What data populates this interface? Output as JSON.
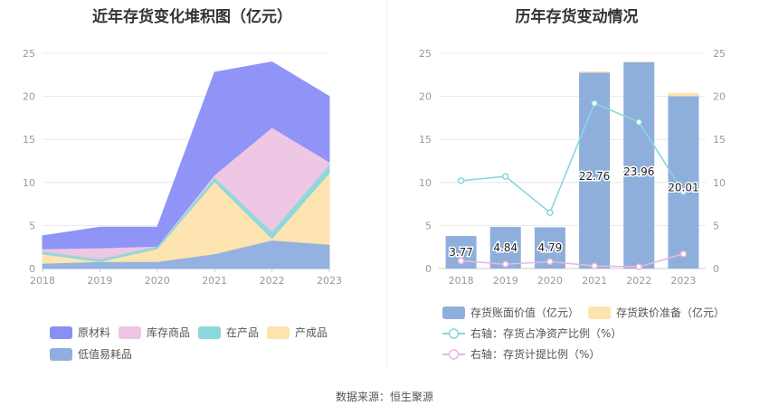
{
  "source": "数据来源：恒生聚源",
  "charts": [
    {
      "title": "近年存货变化堆积图（亿元）",
      "chart_data": {
        "type": "area",
        "stacked": true,
        "x": [
          "2018",
          "2019",
          "2020",
          "2021",
          "2022",
          "2023"
        ],
        "ylim": [
          0,
          25
        ],
        "yticks": [
          "0",
          "5",
          "10",
          "15",
          "20",
          "25"
        ],
        "series": [
          {
            "name": "低值易耗品",
            "color": "#8faee0",
            "values": [
              0.6,
              0.8,
              0.8,
              1.7,
              3.3,
              2.8
            ]
          },
          {
            "name": "产成品",
            "color": "#fde3ad",
            "values": [
              1.1,
              0.0,
              1.5,
              8.4,
              0.2,
              8.3
            ]
          },
          {
            "name": "在产品",
            "color": "#8ad8dc",
            "values": [
              0.3,
              0.3,
              0.3,
              0.5,
              0.8,
              1.0
            ]
          },
          {
            "name": "库存商品",
            "color": "#eec5e4",
            "values": [
              0.3,
              1.3,
              0.0,
              0.3,
              12.1,
              0.3
            ]
          },
          {
            "name": "原材料",
            "color": "#8a8ff6",
            "values": [
              1.5,
              2.4,
              2.2,
              11.9,
              7.6,
              7.6
            ]
          }
        ],
        "legend": [
          "原材料",
          "库存商品",
          "在产品",
          "产成品",
          "低值易耗品"
        ],
        "legend_position": "bottom"
      }
    },
    {
      "title": "历年存货变动情况",
      "chart_data": {
        "type": "bar",
        "x": [
          "2018",
          "2019",
          "2020",
          "2021",
          "2022",
          "2023"
        ],
        "ylim_left": [
          0,
          25
        ],
        "ylim_right": [
          0,
          25
        ],
        "yticks": [
          "0",
          "5",
          "10",
          "15",
          "20",
          "25"
        ],
        "bars": {
          "name": "存货账面价值（亿元）",
          "color": "#8eaedc",
          "values": [
            3.77,
            4.84,
            4.79,
            22.76,
            23.96,
            20.01
          ],
          "labels": [
            "3.77",
            "4.84",
            "4.79",
            "22.76",
            "23.96",
            "20.01"
          ]
        },
        "bars_stack": {
          "name": "存货跌价准备（亿元）",
          "color": "#fde3ad",
          "values": [
            0.0,
            0.0,
            0.0,
            0.15,
            0.1,
            0.4
          ]
        },
        "lines": [
          {
            "name": "右轴：存货占净资产比例（%）",
            "color": "#88d6dc",
            "values": [
              10.2,
              10.7,
              6.5,
              19.2,
              17.0,
              8.9
            ]
          },
          {
            "name": "右轴：存货计提比例（%）",
            "color": "#eab8dd",
            "values": [
              0.9,
              0.5,
              0.8,
              0.3,
              0.2,
              1.7
            ]
          }
        ],
        "legend_position": "bottom"
      }
    }
  ]
}
